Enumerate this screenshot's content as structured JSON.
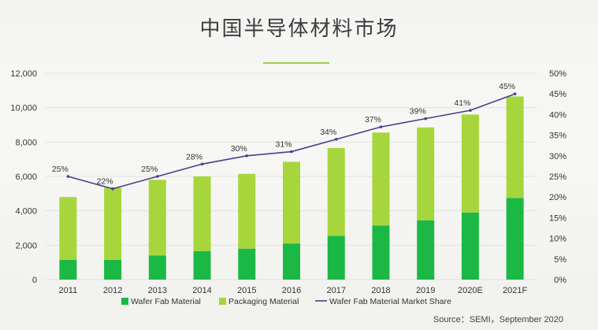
{
  "title": "中国半导体材料市场",
  "source": "Source：SEMI，September 2020",
  "chart_data": {
    "type": "bar",
    "stacked": true,
    "categories": [
      "2011",
      "2012",
      "2013",
      "2014",
      "2015",
      "2016",
      "2017",
      "2018",
      "2019",
      "2020E",
      "2021F"
    ],
    "series": [
      {
        "name": "Wafer Fab Material",
        "color": "#1cb845",
        "values": [
          1150,
          1150,
          1400,
          1650,
          1800,
          2100,
          2550,
          3150,
          3450,
          3900,
          4750
        ]
      },
      {
        "name": "Packaging Material",
        "color": "#a6d63c",
        "values": [
          3650,
          4200,
          4400,
          4350,
          4350,
          4750,
          5100,
          5400,
          5400,
          5700,
          5900
        ]
      }
    ],
    "line_series": {
      "name": "Wafer Fab Material Market Share",
      "color": "#4b3f8c",
      "values": [
        25,
        22,
        25,
        28,
        30,
        31,
        34,
        37,
        39,
        41,
        45
      ],
      "labels": [
        "25%",
        "22%",
        "25%",
        "28%",
        "30%",
        "31%",
        "34%",
        "37%",
        "39%",
        "41%",
        "45%"
      ]
    },
    "y_left": {
      "min": 0,
      "max": 12000,
      "ticks": [
        "0",
        "2,000",
        "4,000",
        "6,000",
        "8,000",
        "10,000",
        "12,000"
      ]
    },
    "y_right": {
      "min": 0,
      "max": 50,
      "ticks": [
        "0%",
        "5%",
        "10%",
        "15%",
        "20%",
        "25%",
        "30%",
        "35%",
        "40%",
        "45%",
        "50%"
      ]
    },
    "grid": true,
    "legend_position": "bottom"
  }
}
